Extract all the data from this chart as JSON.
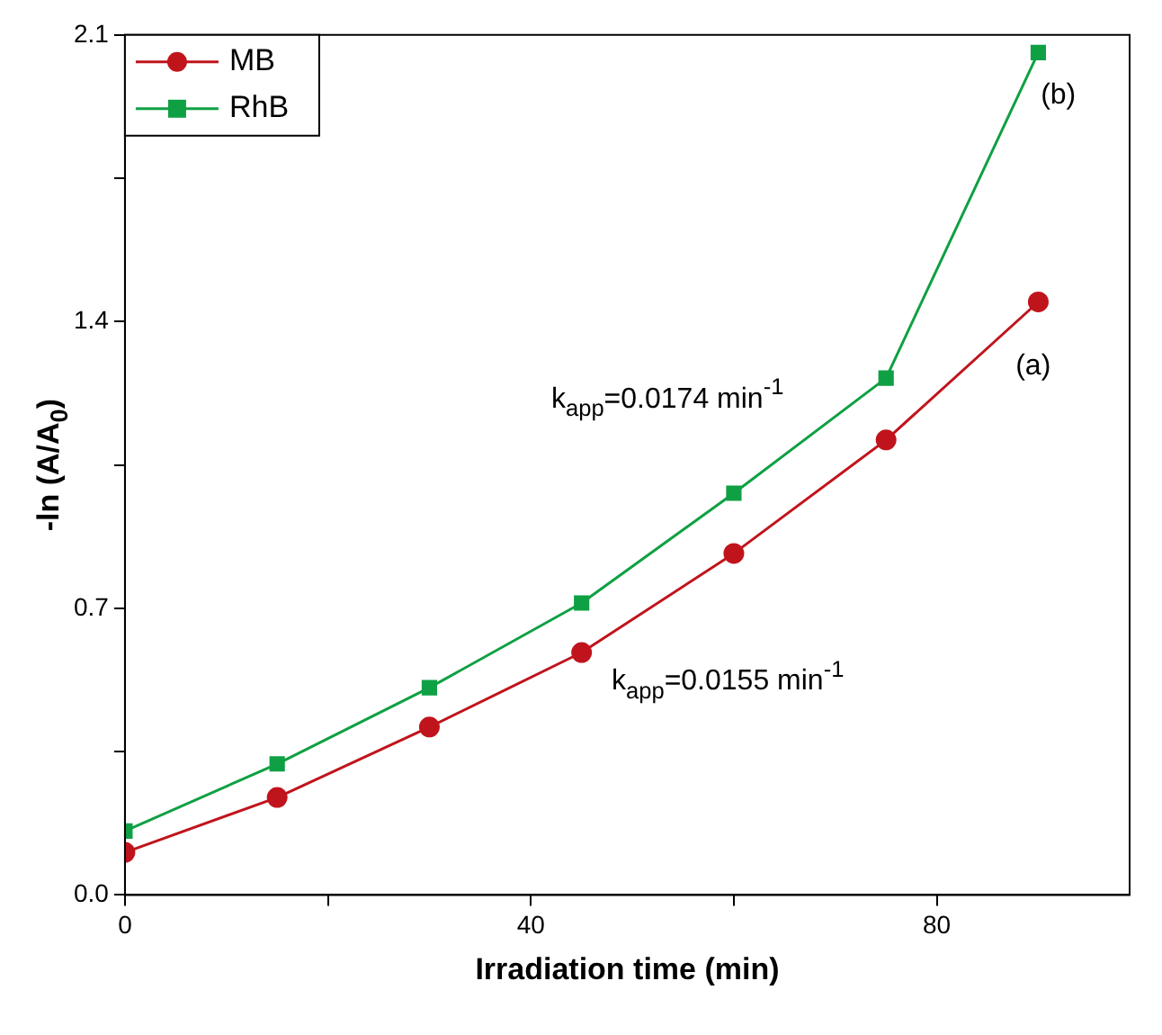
{
  "chart_data": {
    "type": "line",
    "xlabel": "Irradiation time (min)",
    "ylabel": "-ln (A/A$_{0}$)",
    "x": [
      0,
      15,
      30,
      45,
      60,
      75,
      90
    ],
    "series": [
      {
        "name": "MB",
        "color": "#c0141c",
        "marker": "circle",
        "values": [
          0.104,
          0.238,
          0.41,
          0.592,
          0.834,
          1.111,
          1.448
        ]
      },
      {
        "name": "RhB",
        "color": "#0fa043",
        "marker": "square",
        "values": [
          0.156,
          0.32,
          0.506,
          0.713,
          0.981,
          1.262,
          2.057
        ]
      }
    ],
    "xlim": [
      0,
      99
    ],
    "xticks": [
      0,
      {
        "value": 20,
        "label": null
      },
      40,
      {
        "value": 60,
        "label": null
      },
      80
    ],
    "ylim": [
      0,
      2.1
    ],
    "yticks": [
      {
        "value": 0,
        "label": "0.0"
      },
      {
        "value": 0.35,
        "label": null
      },
      0.7,
      {
        "value": 1.05,
        "label": null
      },
      1.4,
      {
        "value": 1.75,
        "label": null
      },
      2.1
    ],
    "annotations": [
      "k$_{app}$=0.0174 min$^{-1}$",
      "k$_{app}$=0.0155 min$^{-1}$",
      "(a)",
      "(b)"
    ],
    "legend": "top left",
    "grid": false,
    "line_style": "solid"
  }
}
